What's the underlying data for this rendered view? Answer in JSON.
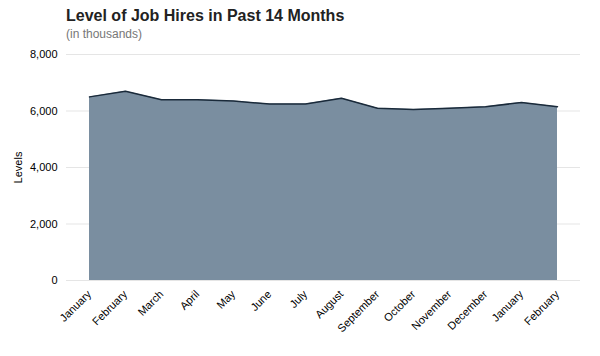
{
  "chart_data": {
    "type": "area",
    "title": "Level of Job Hires in Past 14 Months",
    "subtitle": "(in thousands)",
    "ylabel": "Levels",
    "categories": [
      "January",
      "February",
      "March",
      "April",
      "May",
      "June",
      "July",
      "August",
      "September",
      "October",
      "November",
      "December",
      "January",
      "February"
    ],
    "values": [
      6500,
      6700,
      6400,
      6400,
      6350,
      6250,
      6250,
      6450,
      6100,
      6050,
      6100,
      6150,
      6300,
      6150
    ],
    "colors": [
      "#7a8ea0",
      "#1a2a3a"
    ],
    "ylim": [
      0,
      8000
    ],
    "yticks": [
      0,
      {
        "value": 2000,
        "label": "2,000"
      },
      {
        "value": 4000,
        "label": "4,000"
      },
      {
        "value": 6000,
        "label": "6,000"
      },
      {
        "value": 8000,
        "label": "8,000"
      }
    ],
    "grid": true
  }
}
